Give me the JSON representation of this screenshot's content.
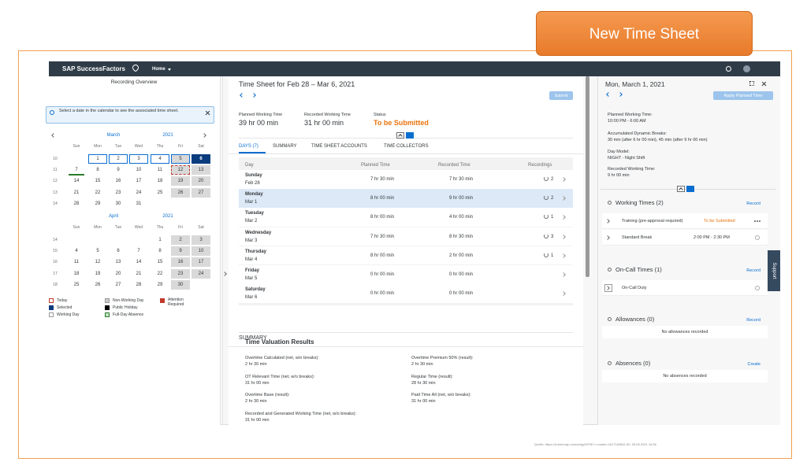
{
  "banner": "New Time Sheet",
  "source": "Quelle: https://d.dam.sap.com/a/sjgGXF8Y==nodim=1617183661 80, 05.05.2021 16:36",
  "header": {
    "brand": "SAP SuccessFactors",
    "menu": "Home"
  },
  "left": {
    "title": "Recording Overview",
    "info": "Select a date in the calendar to see the associated time sheet.",
    "weekdays": [
      "Sun",
      "Mon",
      "Tue",
      "Wed",
      "Thu",
      "Fri",
      "Sat"
    ],
    "months": [
      {
        "name": "March",
        "year": "2021",
        "weeks": [
          {
            "week": "10",
            "days": [
              null,
              "1",
              "2",
              "3",
              "4",
              "5",
              "6"
            ]
          },
          {
            "week": "11",
            "days": [
              "7",
              "8",
              "9",
              "10",
              "11",
              "12",
              "13"
            ]
          },
          {
            "week": "12",
            "days": [
              "14",
              "15",
              "16",
              "17",
              "18",
              "19",
              "20"
            ]
          },
          {
            "week": "13",
            "days": [
              "21",
              "22",
              "23",
              "24",
              "25",
              "26",
              "27"
            ]
          },
          {
            "week": "14",
            "days": [
              "28",
              "29",
              "30",
              "31",
              null,
              null,
              null
            ]
          }
        ]
      },
      {
        "name": "April",
        "year": "2021",
        "weeks": [
          {
            "week": "14",
            "days": [
              null,
              null,
              null,
              null,
              "1",
              "2",
              "3"
            ]
          },
          {
            "week": "15",
            "days": [
              "4",
              "5",
              "6",
              "7",
              "8",
              "9",
              "10"
            ]
          },
          {
            "week": "16",
            "days": [
              "11",
              "12",
              "13",
              "14",
              "15",
              "16",
              "17"
            ]
          },
          {
            "week": "17",
            "days": [
              "18",
              "19",
              "20",
              "21",
              "22",
              "23",
              "24"
            ]
          },
          {
            "week": "18",
            "days": [
              "25",
              "26",
              "27",
              "28",
              "29",
              "30",
              null
            ]
          }
        ]
      }
    ],
    "legend": [
      "Today",
      "Selected",
      "Working Day",
      "Non-Working Day",
      "Public Holiday",
      "Full-Day Absence",
      "Attention Required"
    ]
  },
  "middle": {
    "title": "Time Sheet for Feb 28 – Mar 6, 2021",
    "submit": "Submit",
    "metrics": [
      {
        "label": "Planned Working Time",
        "value": "39 hr 00 min"
      },
      {
        "label": "Recorded Working Time",
        "value": "31 hr 00 min"
      },
      {
        "label": "Status",
        "value": "To be Submitted"
      }
    ],
    "tabs": [
      "DAYS (7)",
      "SUMMARY",
      "TIME SHEET ACCOUNTS",
      "TIME COLLECTORS"
    ],
    "table": {
      "headers": [
        "Day",
        "Planned Time",
        "Recorded Time",
        "Recordings"
      ],
      "rows": [
        [
          "Sunday",
          "Feb 28",
          "7 hr 30 min",
          "7 hr 30 min",
          "2"
        ],
        [
          "Monday",
          "Mar 1",
          "8 hr 00 min",
          "9 hr 00 min",
          "2"
        ],
        [
          "Tuesday",
          "Mar 2",
          "8 hr 00 min",
          "4 hr 00 min",
          "1"
        ],
        [
          "Wednesday",
          "Mar 3",
          "7 hr 30 min",
          "8 hr 30 min",
          "3"
        ],
        [
          "Thursday",
          "Mar 4",
          "8 hr 00 min",
          "2 hr 00 min",
          "1"
        ],
        [
          "Friday",
          "Mar 5",
          "0 hr 00 min",
          "0 hr 00 min",
          null
        ],
        [
          "Saturday",
          "Mar 6",
          "0 hr 00 min",
          "0 hr 00 min",
          null
        ]
      ]
    },
    "summary": {
      "heading": "SUMMARY",
      "title": "Time Valuation Results",
      "items": [
        {
          "label": "Overtime Calculated (net, w/o breaks):",
          "value": "2 hr 30 min"
        },
        {
          "label": "Overtime Premium 50% (result):",
          "value": "2 hr 30 min"
        },
        {
          "label": "OT Relevant Time (net, w/o breaks):",
          "value": "31 hr 00 min"
        },
        {
          "label": "Regular Time (result):",
          "value": "28 hr 30 min"
        },
        {
          "label": "Overtime Base (result):",
          "value": "2 hr 30 min"
        },
        {
          "label": "Paid Time All (net, w/o breaks):",
          "value": "31 hr 00 min"
        },
        {
          "label": "Recorded and Generated Working Time (net, w/o breaks):",
          "value": "31 hr 00 min"
        }
      ]
    }
  },
  "right": {
    "title": "Mon, March 1, 2021",
    "apply": "Apply Planned Time",
    "details": [
      {
        "label": "Planned Working Time:",
        "value": "10:00 PM - 6:00 AM"
      },
      {
        "label": "Accumulated Dynamic Breaks:",
        "value": "30 min (after 6 hr 00 min), 45 min (after 9 hr 00 min)"
      },
      {
        "label": "Day Model:",
        "value": "NIGHT - Night Shift"
      },
      {
        "label": "Recorded Working Time:",
        "value": "9 hr 00 min"
      }
    ],
    "sections": [
      {
        "title": "Working Times (2)",
        "action": "Record",
        "items": [
          {
            "label": "Training (pre-approval required)",
            "status": "To be Submitted"
          },
          {
            "label": "Standard Break",
            "status": "2:00 PM - 2:30 PM"
          }
        ]
      },
      {
        "title": "On-Call Times (1)",
        "action": "Record",
        "items": [
          {
            "label": "On-Call Duty"
          }
        ]
      },
      {
        "title": "Allowances (0)",
        "action": "Record",
        "empty": "No allowances recorded"
      },
      {
        "title": "Absences (0)",
        "action": "Create",
        "empty": "No absences recorded"
      }
    ],
    "support": "Support"
  }
}
